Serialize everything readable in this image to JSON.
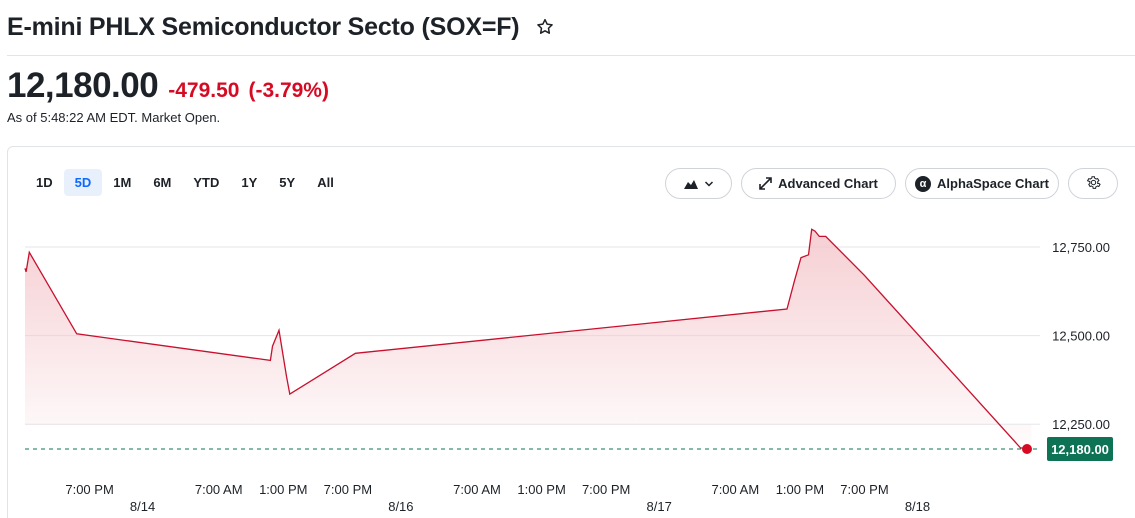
{
  "header": {
    "title": "E-mini PHLX Semiconductor Secto (SOX=F)"
  },
  "quote": {
    "price": "12,180.00",
    "change": "-479.50",
    "change_pct": "(-3.79%)",
    "as_of": "As of 5:48:22 AM EDT. Market Open."
  },
  "toolbar": {
    "ranges": [
      {
        "label": "1D",
        "active": false
      },
      {
        "label": "5D",
        "active": true
      },
      {
        "label": "1M",
        "active": false
      },
      {
        "label": "6M",
        "active": false
      },
      {
        "label": "YTD",
        "active": false
      },
      {
        "label": "1Y",
        "active": false
      },
      {
        "label": "5Y",
        "active": false
      },
      {
        "label": "All",
        "active": false
      }
    ],
    "advanced_chart": "Advanced Chart",
    "alphaspace_chart": "AlphaSpace Chart",
    "chart_type_icon": "mountain-chart-icon",
    "settings_icon": "gear-icon"
  },
  "colors": {
    "line": "#c8102e",
    "fill": "#f4c6cb",
    "down": "#d60a22",
    "last_badge": "#0e7354",
    "active_range": "#0f69ff"
  },
  "chart_data": {
    "type": "area",
    "title": "",
    "xlabel": "",
    "ylabel": "",
    "ylim": [
      12170,
      12820
    ],
    "y_ticks": [
      "12,250.00",
      "12,500.00",
      "12,750.00"
    ],
    "y_tick_values": [
      12250,
      12500,
      12750
    ],
    "x_tick_labels": [
      {
        "time": "7:00 PM",
        "date": "8/14",
        "x": 6
      },
      {
        "time": "7:00 AM",
        "date": "",
        "x": 18
      },
      {
        "time": "1:00 PM",
        "date": "",
        "x": 24
      },
      {
        "time": "7:00 PM",
        "date": "8/16",
        "x": 30
      },
      {
        "time": "7:00 AM",
        "date": "",
        "x": 42
      },
      {
        "time": "1:00 PM",
        "date": "",
        "x": 48
      },
      {
        "time": "7:00 PM",
        "date": "8/17",
        "x": 54
      },
      {
        "time": "7:00 AM",
        "date": "",
        "x": 66
      },
      {
        "time": "1:00 PM",
        "date": "",
        "x": 72
      },
      {
        "time": "7:00 PM",
        "date": "8/18",
        "x": 78
      }
    ],
    "x_range": [
      0.0,
      91.8
    ],
    "last_value": 12180,
    "last_label": "12,180.00",
    "grid": true,
    "series": [
      {
        "values": [
          [
            0.0,
            12690
          ],
          [
            0.1,
            12680
          ],
          [
            0.4,
            12735
          ],
          [
            4.8,
            12505
          ],
          [
            22.8,
            12430
          ],
          [
            23.0,
            12470
          ],
          [
            23.6,
            12515
          ],
          [
            24.3,
            12385
          ],
          [
            24.6,
            12335
          ],
          [
            30.7,
            12450
          ],
          [
            70.8,
            12575
          ],
          [
            71.5,
            12655
          ],
          [
            72.1,
            12720
          ],
          [
            72.8,
            12728
          ],
          [
            73.1,
            12800
          ],
          [
            73.4,
            12795
          ],
          [
            73.8,
            12780
          ],
          [
            74.4,
            12780
          ],
          [
            78.0,
            12670
          ],
          [
            92.5,
            12183
          ],
          [
            93.5,
            12180
          ]
        ]
      }
    ]
  }
}
